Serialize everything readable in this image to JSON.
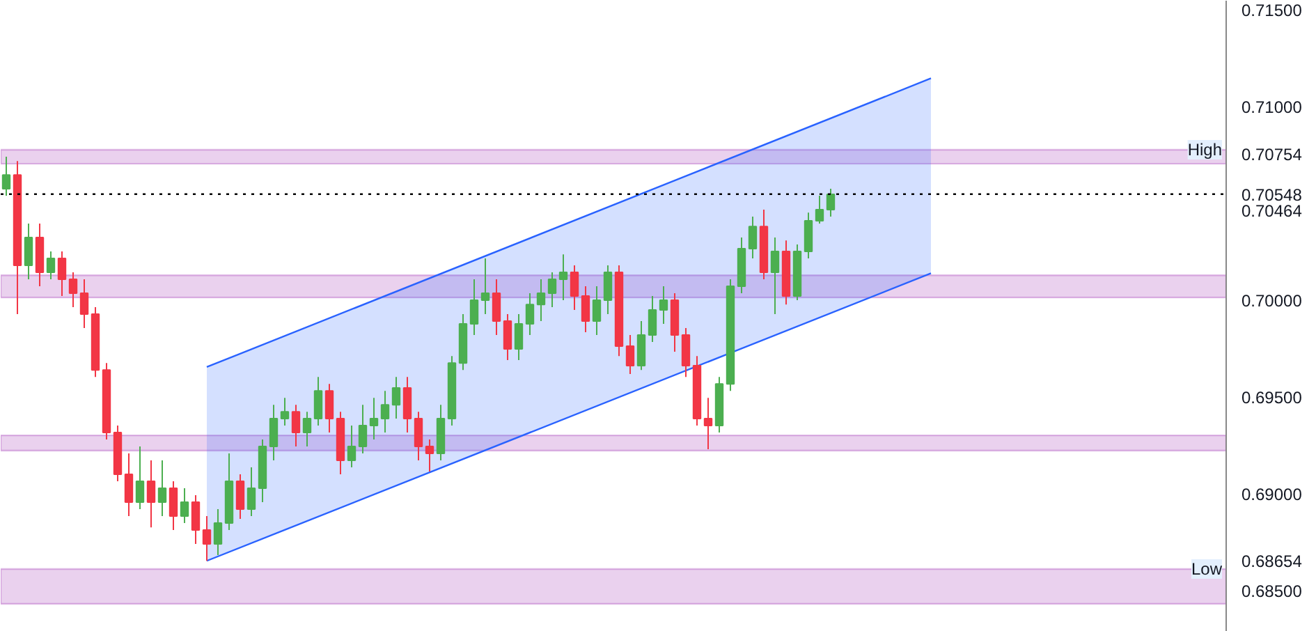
{
  "chart_data": {
    "type": "candlestick",
    "categories": [
      null,
      null,
      null,
      null,
      null,
      null,
      null,
      null,
      null,
      null,
      null,
      null,
      null,
      null,
      null,
      null,
      null,
      null,
      null,
      null,
      null,
      null,
      null,
      null,
      null,
      null,
      null,
      null,
      null,
      null,
      null,
      null,
      null,
      null,
      null,
      null,
      null,
      null,
      null,
      null,
      null,
      null,
      null,
      null,
      null,
      null,
      null,
      null,
      null,
      null,
      null,
      null,
      null,
      null,
      null,
      null,
      null,
      null,
      null,
      null,
      null,
      null,
      null,
      null,
      null,
      null,
      null,
      null,
      null,
      null,
      null,
      null,
      null,
      null,
      null,
      null,
      null,
      null,
      null,
      null,
      null,
      null,
      null,
      null,
      null,
      null,
      null,
      null,
      null,
      null,
      null,
      null,
      null,
      null,
      null,
      null,
      null,
      null,
      null,
      null,
      null,
      null,
      null,
      null,
      null,
      null,
      null,
      null,
      null,
      null
    ],
    "ohlc": [
      [
        0.70576,
        0.70741,
        0.7054,
        0.70647
      ],
      [
        0.70647,
        0.70719,
        0.69928,
        0.7018
      ],
      [
        0.7018,
        0.70396,
        0.70108,
        0.70324
      ],
      [
        0.70324,
        0.70396,
        0.70072,
        0.70144
      ],
      [
        0.70144,
        0.70252,
        0.70108,
        0.70216
      ],
      [
        0.70216,
        0.70252,
        0.70022,
        0.70108
      ],
      [
        0.70108,
        0.70144,
        0.69964,
        0.70036
      ],
      [
        0.70036,
        0.70108,
        0.69856,
        0.69928
      ],
      [
        0.69928,
        0.69964,
        0.69604,
        0.6964
      ],
      [
        0.6964,
        0.69676,
        0.69281,
        0.69317
      ],
      [
        0.69317,
        0.69353,
        0.69065,
        0.69101
      ],
      [
        0.69101,
        0.69209,
        0.68885,
        0.68957
      ],
      [
        0.68957,
        0.69245,
        0.68921,
        0.69065
      ],
      [
        0.69065,
        0.69173,
        0.68827,
        0.68957
      ],
      [
        0.68957,
        0.69173,
        0.68885,
        0.69029
      ],
      [
        0.69029,
        0.69065,
        0.68813,
        0.68885
      ],
      [
        0.68885,
        0.69029,
        0.68849,
        0.68957
      ],
      [
        0.68957,
        0.68993,
        0.68741,
        0.68813
      ],
      [
        0.68813,
        0.68885,
        0.68654,
        0.68741
      ],
      [
        0.68741,
        0.68921,
        0.68684,
        0.68849
      ],
      [
        0.68849,
        0.69209,
        0.68813,
        0.69065
      ],
      [
        0.69065,
        0.69101,
        0.68871,
        0.68921
      ],
      [
        0.68921,
        0.69137,
        0.68885,
        0.69029
      ],
      [
        0.69029,
        0.69281,
        0.68957,
        0.69245
      ],
      [
        0.69245,
        0.6946,
        0.69173,
        0.69389
      ],
      [
        0.69389,
        0.69496,
        0.69353,
        0.69424
      ],
      [
        0.69424,
        0.6946,
        0.69245,
        0.69317
      ],
      [
        0.69317,
        0.69424,
        0.69245,
        0.69389
      ],
      [
        0.69389,
        0.69604,
        0.69353,
        0.69532
      ],
      [
        0.69532,
        0.69568,
        0.69317,
        0.69389
      ],
      [
        0.69389,
        0.69424,
        0.69101,
        0.69173
      ],
      [
        0.69173,
        0.69353,
        0.69137,
        0.69245
      ],
      [
        0.69245,
        0.6946,
        0.69209,
        0.69353
      ],
      [
        0.69353,
        0.69496,
        0.69281,
        0.69389
      ],
      [
        0.69389,
        0.69532,
        0.69317,
        0.6946
      ],
      [
        0.6946,
        0.69604,
        0.69389,
        0.69547
      ],
      [
        0.69547,
        0.69604,
        0.69317,
        0.69389
      ],
      [
        0.69389,
        0.69424,
        0.69173,
        0.69245
      ],
      [
        0.69245,
        0.69281,
        0.69115,
        0.69209
      ],
      [
        0.69209,
        0.6946,
        0.69173,
        0.69389
      ],
      [
        0.69389,
        0.69712,
        0.69353,
        0.69676
      ],
      [
        0.69676,
        0.69928,
        0.6964,
        0.69878
      ],
      [
        0.69878,
        0.70108,
        0.6982,
        0.7
      ],
      [
        0.7,
        0.70216,
        0.69928,
        0.70036
      ],
      [
        0.70036,
        0.70108,
        0.6982,
        0.69892
      ],
      [
        0.69892,
        0.69928,
        0.69691,
        0.69748
      ],
      [
        0.69748,
        0.69928,
        0.69691,
        0.69878
      ],
      [
        0.69878,
        0.70036,
        0.6982,
        0.69978
      ],
      [
        0.69978,
        0.70108,
        0.69892,
        0.70036
      ],
      [
        0.70036,
        0.70144,
        0.69964,
        0.70108
      ],
      [
        0.70108,
        0.70237,
        0.7,
        0.70144
      ],
      [
        0.70144,
        0.7018,
        0.6995,
        0.70022
      ],
      [
        0.70022,
        0.70072,
        0.69835,
        0.69892
      ],
      [
        0.69892,
        0.70072,
        0.6982,
        0.7
      ],
      [
        0.7,
        0.7018,
        0.69928,
        0.70144
      ],
      [
        0.70144,
        0.7018,
        0.69712,
        0.69763
      ],
      [
        0.69763,
        0.6982,
        0.69619,
        0.69662
      ],
      [
        0.69662,
        0.69892,
        0.6964,
        0.6982
      ],
      [
        0.6982,
        0.70022,
        0.69784,
        0.6995
      ],
      [
        0.6995,
        0.70072,
        0.69878,
        0.7
      ],
      [
        0.7,
        0.70036,
        0.69734,
        0.6982
      ],
      [
        0.6982,
        0.69856,
        0.69604,
        0.69662
      ],
      [
        0.69662,
        0.69712,
        0.69353,
        0.69389
      ],
      [
        0.69389,
        0.69496,
        0.6923,
        0.69353
      ],
      [
        0.69353,
        0.69604,
        0.69317,
        0.69568
      ],
      [
        0.69568,
        0.70108,
        0.69532,
        0.70072
      ],
      [
        0.70072,
        0.70324,
        0.70036,
        0.70266
      ],
      [
        0.70266,
        0.70432,
        0.70216,
        0.70381
      ],
      [
        0.70381,
        0.70468,
        0.70108,
        0.70144
      ],
      [
        0.70144,
        0.70324,
        0.69928,
        0.70252
      ],
      [
        0.70252,
        0.70309,
        0.69978,
        0.70022
      ],
      [
        0.70022,
        0.70288,
        0.7,
        0.70252
      ],
      [
        0.70252,
        0.70453,
        0.70216,
        0.7041
      ],
      [
        0.7041,
        0.7054,
        0.70396,
        0.70468
      ],
      [
        0.70468,
        0.70576,
        0.70432,
        0.70547
      ],
      null,
      null,
      null,
      null,
      null,
      null,
      null,
      null,
      null,
      null,
      null,
      null,
      null,
      null,
      null,
      null,
      null,
      null,
      null,
      null,
      null,
      null,
      null,
      null,
      null,
      null,
      null,
      null,
      null,
      null,
      null,
      null,
      null,
      null,
      null
    ],
    "series": [
      {
        "type": "area",
        "color": "#2962ff",
        "values": [
          null,
          null,
          null,
          null,
          null,
          null,
          null,
          null,
          null,
          null,
          null,
          null,
          null,
          null,
          null,
          null,
          null,
          null,
          0.69655,
          null,
          null,
          null,
          null,
          null,
          null,
          null,
          null,
          null,
          null,
          null,
          null,
          null,
          null,
          null,
          null,
          null,
          null,
          null,
          null,
          null,
          null,
          null,
          null,
          null,
          null,
          null,
          null,
          null,
          null,
          null,
          null,
          null,
          null,
          null,
          null,
          null,
          null,
          null,
          null,
          null,
          null,
          null,
          null,
          null,
          null,
          null,
          null,
          null,
          null,
          null,
          null,
          null,
          null,
          null,
          null,
          null,
          null,
          null,
          null,
          null,
          null,
          null,
          null,
          0.71146,
          null,
          null,
          null,
          null,
          null,
          null,
          null,
          null,
          null,
          null,
          null,
          null,
          null,
          null,
          null,
          null,
          null,
          null,
          null,
          null,
          null,
          null,
          null,
          null,
          null,
          null
        ]
      },
      {
        "type": "line",
        "color": "#2962ff",
        "values": [
          null,
          null,
          null,
          null,
          null,
          null,
          null,
          null,
          null,
          null,
          null,
          null,
          null,
          null,
          null,
          null,
          null,
          null,
          0.68654,
          null,
          null,
          null,
          null,
          null,
          null,
          null,
          null,
          null,
          null,
          null,
          null,
          null,
          null,
          null,
          null,
          null,
          null,
          null,
          null,
          null,
          null,
          null,
          null,
          null,
          null,
          null,
          null,
          null,
          null,
          null,
          null,
          null,
          null,
          null,
          null,
          null,
          null,
          null,
          null,
          null,
          null,
          null,
          null,
          null,
          null,
          null,
          null,
          null,
          null,
          null,
          null,
          null,
          null,
          null,
          null,
          null,
          null,
          null,
          null,
          null,
          null,
          null,
          null,
          0.70139,
          null,
          null,
          null,
          null,
          null,
          null,
          null,
          null,
          null,
          null,
          null,
          null,
          null,
          null,
          null,
          null,
          null,
          null,
          null,
          null,
          null,
          null,
          null,
          null,
          null,
          null
        ]
      }
    ],
    "ylim": [
      0.68288,
      0.71547
    ],
    "yticks": [
      {
        "value": 0.68654,
        "label": "0.68654"
      },
      {
        "value": 0.70464,
        "label": "0.70464"
      },
      {
        "value": 0.70754,
        "label": "0.70754"
      },
      {
        "value": 0.685,
        "label": "0.68500"
      },
      {
        "value": 0.69,
        "label": "0.69000"
      },
      {
        "value": 0.695,
        "label": "0.69500"
      },
      {
        "value": 0.7,
        "label": "0.70000"
      },
      {
        "value": 0.71,
        "label": "0.71000"
      },
      {
        "value": 0.715,
        "label": "0.71500"
      }
    ],
    "tick_labels": "y",
    "bands": [
      {
        "axis": "y",
        "from": 0.70705,
        "to": 0.70777,
        "label": "High",
        "color": "#e1bee7"
      },
      {
        "axis": "y",
        "from": 0.70014,
        "to": 0.70129,
        "color": "#e1bee7"
      },
      {
        "axis": "y",
        "from": 0.69223,
        "to": 0.69302,
        "color": "#e1bee7"
      },
      {
        "axis": "y",
        "from": 0.68432,
        "to": 0.68612,
        "label": "Low",
        "color": "#e1bee7"
      }
    ],
    "ref_lines": [
      {
        "axis": "y",
        "value": 0.70548,
        "label": "0.70548",
        "color": "#000000",
        "line_style": "dotted"
      }
    ]
  }
}
